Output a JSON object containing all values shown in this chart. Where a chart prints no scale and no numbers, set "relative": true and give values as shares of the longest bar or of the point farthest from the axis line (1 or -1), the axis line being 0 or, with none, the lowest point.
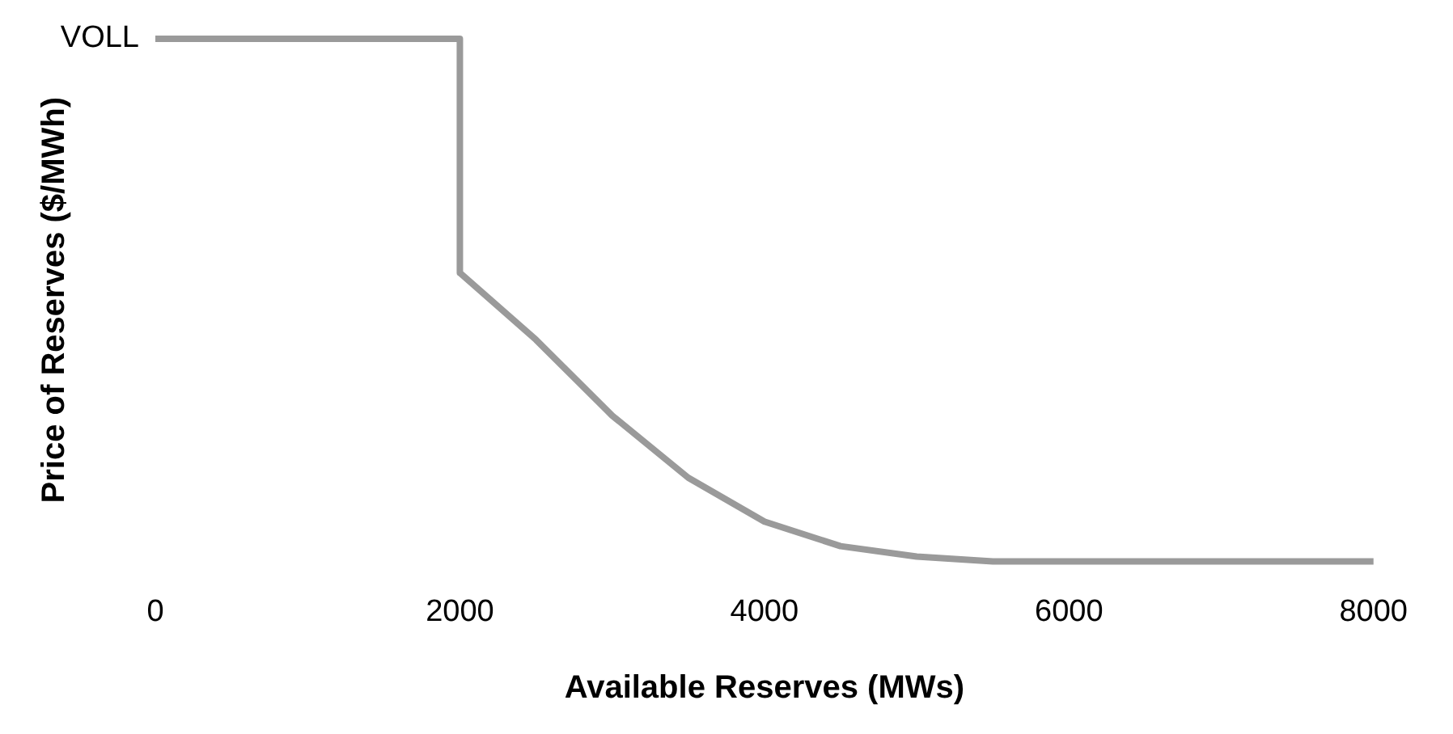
{
  "chart_data": {
    "type": "line",
    "relative": true,
    "xlabel": "Available Reserves (MWs)",
    "ylabel": "Price of Reserves ($/MWh)",
    "x": [
      0,
      2000,
      2000,
      2500,
      3000,
      3500,
      4000,
      4500,
      5000,
      5500,
      8000
    ],
    "series": [
      {
        "color": "#9a9a9a",
        "values": [
          1,
          1,
          0.552,
          0.424,
          0.279,
          0.16,
          0.076,
          0.029,
          0.009,
          0,
          0
        ]
      }
    ],
    "xlim": [
      0,
      8000
    ],
    "xticks": [
      0,
      2000,
      4000,
      6000,
      8000
    ],
    "annotations": [
      {
        "text": "VOLL",
        "x": 0,
        "y": 1
      }
    ],
    "grid": false,
    "legend": false,
    "marker": "none",
    "line_style": "solid"
  }
}
